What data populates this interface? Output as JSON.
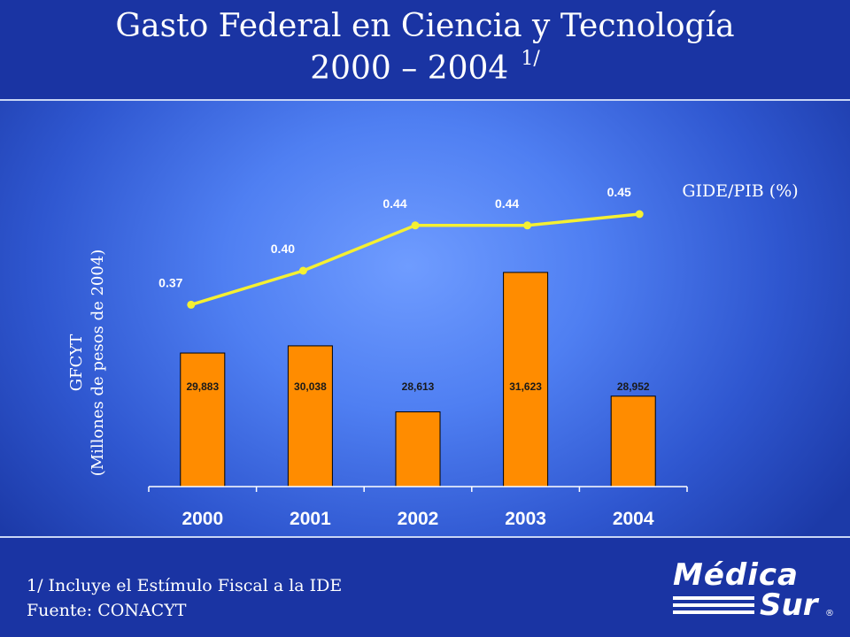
{
  "title": {
    "line1": "Gasto Federal en Ciencia y Tecnología",
    "line2": "2000 – 2004",
    "note": "1/"
  },
  "chart_data": {
    "type": "bar",
    "categories": [
      "2000",
      "2001",
      "2002",
      "2003",
      "2004"
    ],
    "series": [
      {
        "name": "GFCYT",
        "kind": "bar",
        "values": [
          29883,
          30038,
          28613,
          31623,
          28952
        ],
        "labels": [
          "29,883",
          "30,038",
          "28,613",
          "31,623",
          "28,952"
        ],
        "color": "#ff8c00"
      },
      {
        "name": "GIDE/PIB (%)",
        "kind": "line",
        "values": [
          0.37,
          0.4,
          0.44,
          0.44,
          0.45
        ],
        "labels": [
          "0.37",
          "0.40",
          "0.44",
          "0.44",
          "0.45"
        ],
        "color": "#f5f032"
      }
    ],
    "ylabel_line1": "GFCYT",
    "ylabel_line2": "(Millones de pesos de 2004)",
    "line_legend": "GIDE/PIB (%)",
    "ylim_bars": [
      27000,
      32500
    ],
    "ylim_line": [
      0.3,
      0.5
    ],
    "grid": false
  },
  "footer": {
    "note": "1/ Incluye el Estímulo Fiscal a la IDE",
    "source": "Fuente: CONACYT"
  },
  "logo": {
    "word1": "Médica",
    "word2": "Sur",
    "reg": "®"
  },
  "colors": {
    "header": "#1a34a3",
    "panel_center": "#6f9cff",
    "bar_fill": "#ff8c00",
    "line": "#f5f032"
  }
}
